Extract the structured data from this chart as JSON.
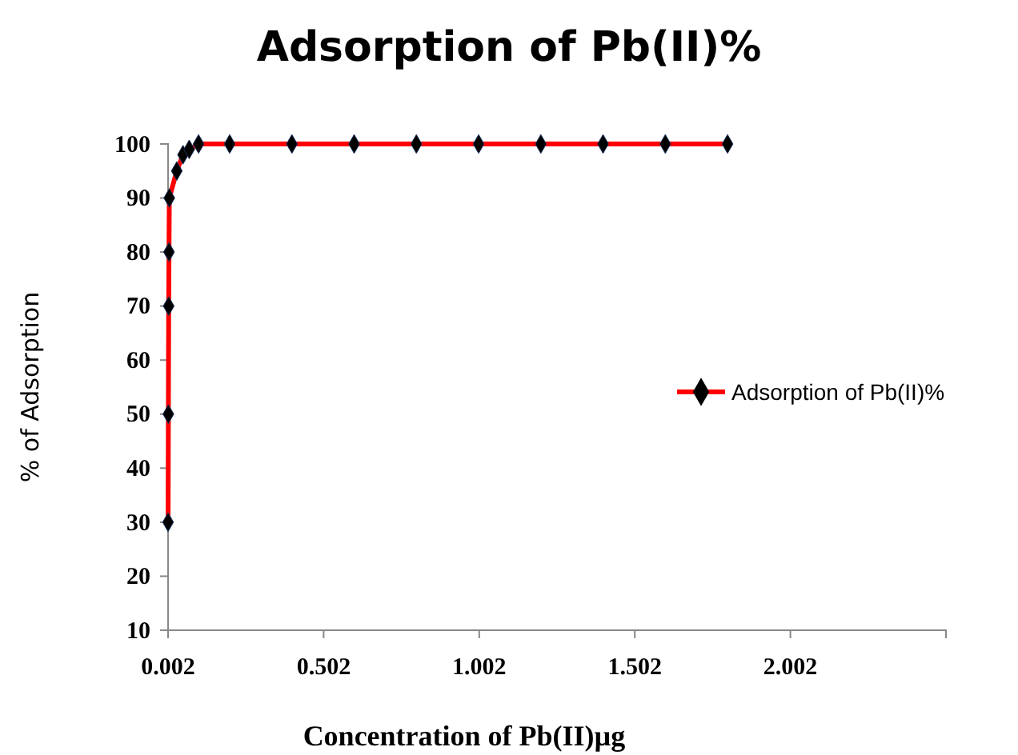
{
  "chart_data": {
    "type": "line",
    "title": "Adsorption of Pb(II)%",
    "xlabel": "Concentration of  Pb(II)µg",
    "ylabel": "% of Adsorption",
    "x": [
      0.002,
      0.003,
      0.004,
      0.005,
      0.006,
      0.03,
      0.05,
      0.07,
      0.1,
      0.2,
      0.4,
      0.6,
      0.8,
      1.0,
      1.2,
      1.4,
      1.6,
      1.8
    ],
    "series": [
      {
        "name": "Adsorption of Pb(II)%",
        "color": "#ff0000",
        "values": [
          30,
          50,
          70,
          80,
          90,
          95,
          98,
          99,
          100,
          100,
          100,
          100,
          100,
          100,
          100,
          100,
          100,
          100
        ]
      }
    ],
    "xlim": [
      0.002,
      2.502
    ],
    "xticks": [
      0.002,
      0.502,
      1.002,
      1.502,
      2.002
    ],
    "ylim": [
      10,
      100
    ],
    "yticks": [
      10,
      20,
      30,
      40,
      50,
      60,
      70,
      80,
      90,
      100
    ],
    "grid": false,
    "legend": "right",
    "marker": "diamond",
    "line_style": "solid"
  }
}
